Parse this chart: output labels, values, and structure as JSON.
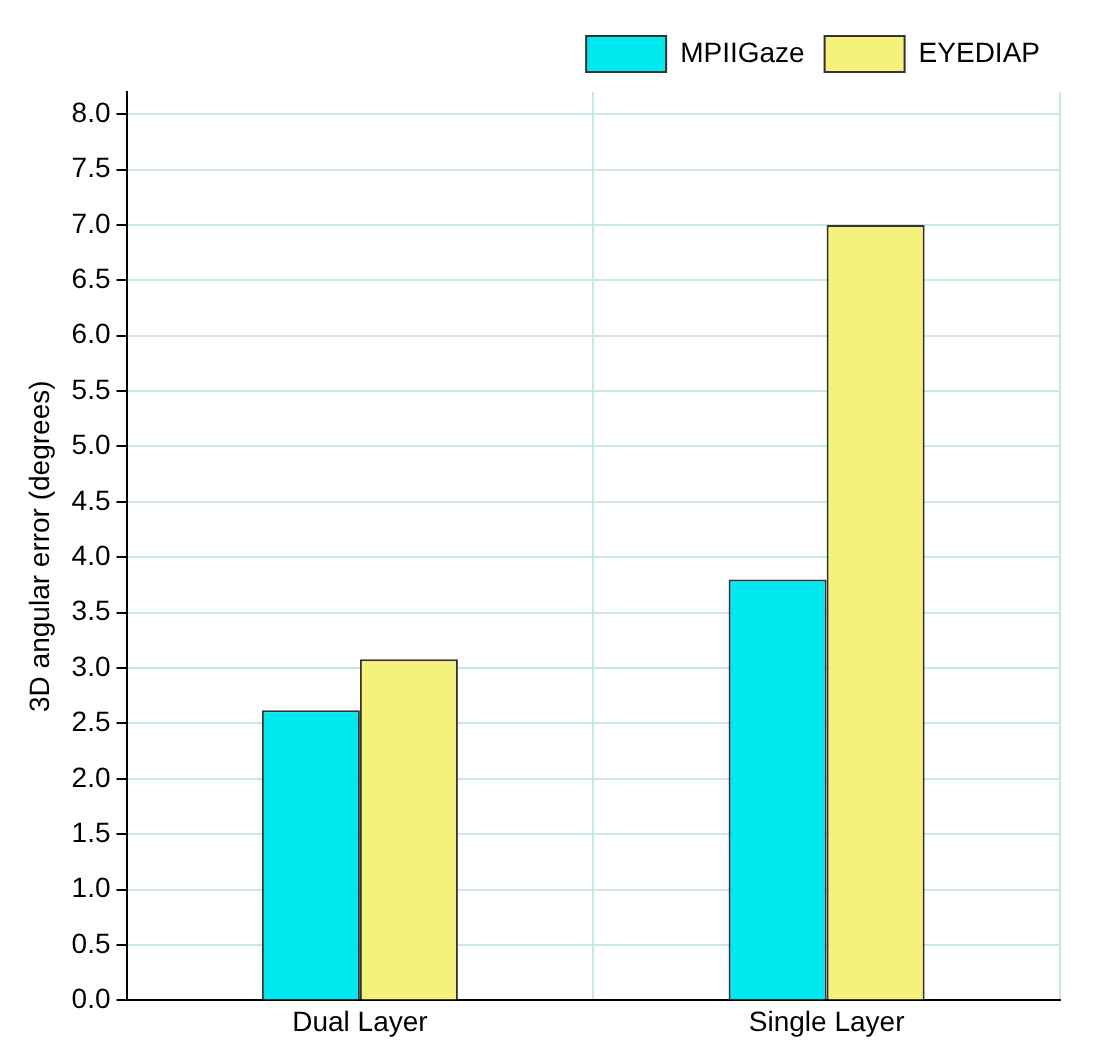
{
  "chart_data": {
    "type": "bar",
    "ylabel": "3D angular error (degrees)",
    "categories": [
      "Dual Layer",
      "Single Layer"
    ],
    "series": [
      {
        "name": "MPIIGaze",
        "color": "#00e8f0",
        "values": [
          2.62,
          3.8
        ]
      },
      {
        "name": "EYEDIAP",
        "color": "#f4f27a",
        "values": [
          3.08,
          7.0
        ]
      }
    ],
    "ylim": [
      0,
      8.2
    ],
    "yticks": [
      {
        "value": 0,
        "label": "0.0"
      },
      {
        "value": 0.5,
        "label": "0.5"
      },
      {
        "value": 1,
        "label": "1.0"
      },
      {
        "value": 1.5,
        "label": "1.5"
      },
      {
        "value": 2,
        "label": "2.0"
      },
      {
        "value": 2.5,
        "label": "2.5"
      },
      {
        "value": 3,
        "label": "3.0"
      },
      {
        "value": 3.5,
        "label": "3.5"
      },
      {
        "value": 4,
        "label": "4.0"
      },
      {
        "value": 4.5,
        "label": "4.5"
      },
      {
        "value": 5,
        "label": "5.0"
      },
      {
        "value": 5.5,
        "label": "5.5"
      },
      {
        "value": 6,
        "label": "6.0"
      },
      {
        "value": 6.5,
        "label": "6.5"
      },
      {
        "value": 7,
        "label": "7.0"
      },
      {
        "value": 7.5,
        "label": "7.5"
      },
      {
        "value": 8,
        "label": "8.0"
      }
    ],
    "grid": true,
    "legend": "top right"
  }
}
